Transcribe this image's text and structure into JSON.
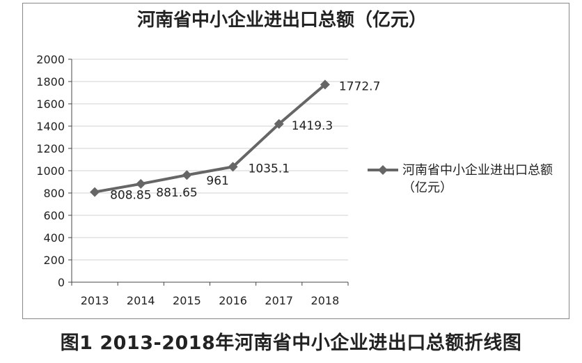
{
  "caption": "图1 2013-2018年河南省中小企业进出口总额折线图",
  "chart_data": {
    "type": "line",
    "title": "河南省中小企业进出口总额（亿元）",
    "categories": [
      "2013",
      "2014",
      "2015",
      "2016",
      "2017",
      "2018"
    ],
    "series": [
      {
        "name": "河南省中小企业进出口总额（亿元）",
        "values": [
          808.85,
          881.65,
          961,
          1035.1,
          1419.3,
          1772.7
        ],
        "labels": [
          "808.85",
          "881.65",
          "961",
          "1035.1",
          "1419.3",
          "1772.7"
        ]
      }
    ],
    "ylim": [
      0,
      2000
    ],
    "yticks": [
      "0",
      "200",
      "400",
      "600",
      "800",
      "1000",
      "1200",
      "1400",
      "1600",
      "1800",
      "2000"
    ],
    "grid": true,
    "legend": "right",
    "colors": {
      "line": "#666666",
      "axis": "#444444",
      "grid": "#d0d0d0",
      "text": "#222222"
    }
  }
}
